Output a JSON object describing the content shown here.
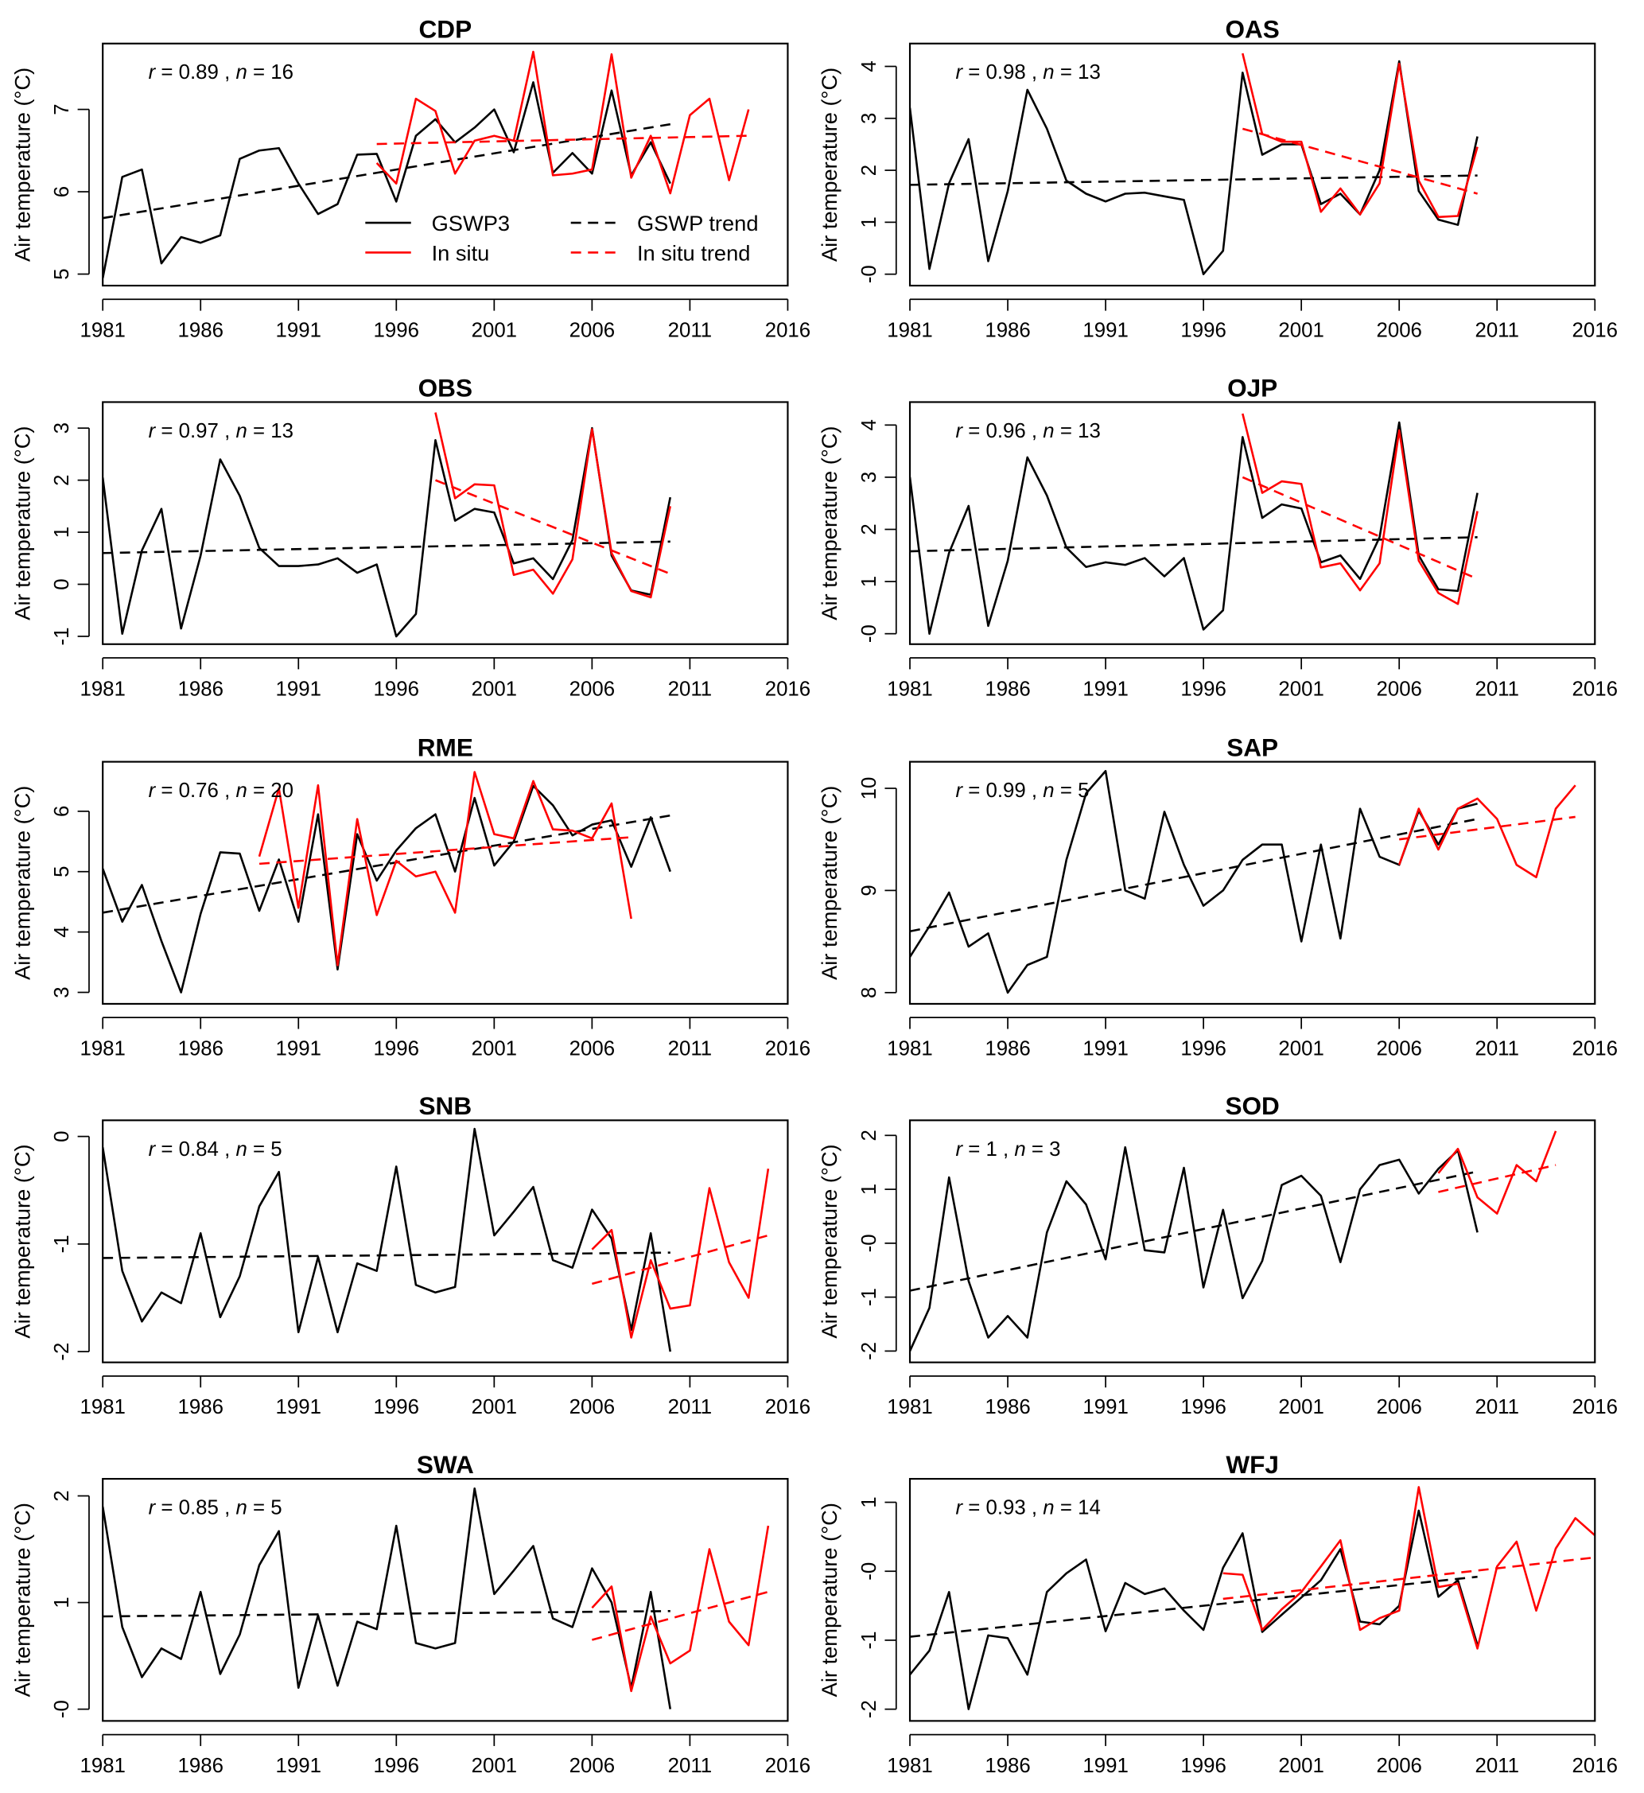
{
  "colors": {
    "gswp": "#000000",
    "insitu": "#ff0000"
  },
  "legend": {
    "gswp": "GSWP3",
    "insitu": "In situ",
    "gswp_trend": "GSWP trend",
    "insitu_trend": "In situ trend"
  },
  "chart_data": [
    {
      "type": "line",
      "title": "CDP",
      "ylabel": "Air temperature (°C)",
      "annotation": "r = 0.89 , n = 16",
      "xlim": [
        1981,
        2016
      ],
      "ylim": [
        4.86,
        7.8
      ],
      "xticks": [
        "1981",
        "1986",
        "1991",
        "1996",
        "2001",
        "2006",
        "2011",
        "2016"
      ],
      "yticks": [
        {
          "v": 5,
          "label": "5"
        },
        {
          "v": 6,
          "label": "6"
        },
        {
          "v": 7,
          "label": "7"
        }
      ],
      "gswp": {
        "x0": 1981,
        "values": [
          4.95,
          6.18,
          6.27,
          5.13,
          5.45,
          5.38,
          5.47,
          6.4,
          6.5,
          6.53,
          6.1,
          5.73,
          5.85,
          6.45,
          6.46,
          5.88,
          6.68,
          6.88,
          6.6,
          6.78,
          7.0,
          6.48,
          7.33,
          6.23,
          6.47,
          6.22,
          7.23,
          6.2,
          6.6,
          6.1
        ]
      },
      "insitu": {
        "x0": 1995,
        "values": [
          6.35,
          6.1,
          7.13,
          6.98,
          6.22,
          6.62,
          6.68,
          6.62,
          7.7,
          6.2,
          6.22,
          6.27,
          7.67,
          6.17,
          6.68,
          5.98,
          6.93,
          7.13,
          6.14,
          7.0
        ]
      },
      "gswp_trend": [
        [
          1981,
          5.68
        ],
        [
          2010,
          6.82
        ]
      ],
      "insitu_trend": [
        [
          1995,
          6.58
        ],
        [
          2014,
          6.68
        ]
      ],
      "legend": true
    },
    {
      "type": "line",
      "title": "OAS",
      "ylabel": "Air temperature (°C)",
      "annotation": "r = 0.98 , n = 13",
      "xlim": [
        1981,
        2016
      ],
      "ylim": [
        -0.22,
        4.44
      ],
      "xticks": [
        "1981",
        "1986",
        "1991",
        "1996",
        "2001",
        "2006",
        "2011",
        "2016"
      ],
      "yticks": [
        {
          "v": 0,
          "label": "-0"
        },
        {
          "v": 1,
          "label": "1"
        },
        {
          "v": 2,
          "label": "2"
        },
        {
          "v": 3,
          "label": "3"
        },
        {
          "v": 4,
          "label": "4"
        }
      ],
      "gswp": {
        "x0": 1981,
        "values": [
          3.2,
          0.1,
          1.75,
          2.6,
          0.25,
          1.6,
          3.55,
          2.8,
          1.8,
          1.55,
          1.4,
          1.55,
          1.57,
          1.5,
          1.43,
          0.0,
          0.45,
          3.88,
          2.3,
          2.5,
          2.5,
          1.35,
          1.55,
          1.15,
          2.0,
          4.1,
          1.6,
          1.05,
          0.95,
          2.65
        ]
      },
      "insitu": {
        "x0": 1998,
        "values": [
          4.25,
          2.7,
          2.55,
          2.55,
          1.2,
          1.65,
          1.15,
          1.75,
          4.05,
          1.8,
          1.1,
          1.12,
          2.45
        ]
      },
      "gswp_trend": [
        [
          1981,
          1.72
        ],
        [
          2010,
          1.9
        ]
      ],
      "insitu_trend": [
        [
          1998,
          2.8
        ],
        [
          2010,
          1.55
        ]
      ]
    },
    {
      "type": "line",
      "title": "OBS",
      "ylabel": "Air temperature (°C)",
      "annotation": "r = 0.97 , n = 13",
      "xlim": [
        1981,
        2016
      ],
      "ylim": [
        -1.15,
        3.5
      ],
      "xticks": [
        "1981",
        "1986",
        "1991",
        "1996",
        "2001",
        "2006",
        "2011",
        "2016"
      ],
      "yticks": [
        {
          "v": -1,
          "label": "-1"
        },
        {
          "v": 0,
          "label": "0"
        },
        {
          "v": 1,
          "label": "1"
        },
        {
          "v": 2,
          "label": "2"
        },
        {
          "v": 3,
          "label": "3"
        }
      ],
      "gswp": {
        "x0": 1981,
        "values": [
          2.05,
          -0.95,
          0.65,
          1.45,
          -0.85,
          0.55,
          2.4,
          1.7,
          0.7,
          0.35,
          0.35,
          0.38,
          0.5,
          0.22,
          0.38,
          -1.0,
          -0.57,
          2.77,
          1.22,
          1.45,
          1.38,
          0.4,
          0.5,
          0.1,
          0.85,
          3.0,
          0.55,
          -0.12,
          -0.2,
          1.67
        ]
      },
      "insitu": {
        "x0": 1998,
        "values": [
          3.3,
          1.65,
          1.92,
          1.9,
          0.18,
          0.28,
          -0.18,
          0.48,
          2.98,
          0.6,
          -0.13,
          -0.25,
          1.5
        ]
      },
      "gswp_trend": [
        [
          1981,
          0.6
        ],
        [
          2010,
          0.82
        ]
      ],
      "insitu_trend": [
        [
          1998,
          2.0
        ],
        [
          2010,
          0.2
        ]
      ]
    },
    {
      "type": "line",
      "title": "OJP",
      "ylabel": "Air temperature (°C)",
      "annotation": "r = 0.96 , n = 13",
      "xlim": [
        1981,
        2016
      ],
      "ylim": [
        -0.2,
        4.44
      ],
      "xticks": [
        "1981",
        "1986",
        "1991",
        "1996",
        "2001",
        "2006",
        "2011",
        "2016"
      ],
      "yticks": [
        {
          "v": 0,
          "label": "-0"
        },
        {
          "v": 1,
          "label": "1"
        },
        {
          "v": 2,
          "label": "2"
        },
        {
          "v": 3,
          "label": "3"
        },
        {
          "v": 4,
          "label": "4"
        }
      ],
      "gswp": {
        "x0": 1981,
        "values": [
          3.0,
          0.0,
          1.55,
          2.45,
          0.15,
          1.4,
          3.38,
          2.65,
          1.65,
          1.28,
          1.37,
          1.32,
          1.45,
          1.1,
          1.45,
          0.08,
          0.45,
          3.77,
          2.22,
          2.48,
          2.4,
          1.37,
          1.5,
          1.05,
          1.85,
          4.05,
          1.5,
          0.85,
          0.82,
          2.7
        ]
      },
      "insitu": {
        "x0": 1998,
        "values": [
          4.22,
          2.7,
          2.92,
          2.87,
          1.27,
          1.35,
          0.83,
          1.35,
          3.9,
          1.4,
          0.78,
          0.57,
          2.35
        ]
      },
      "gswp_trend": [
        [
          1981,
          1.58
        ],
        [
          2010,
          1.85
        ]
      ],
      "insitu_trend": [
        [
          1998,
          3.0
        ],
        [
          2010,
          1.05
        ]
      ]
    },
    {
      "type": "line",
      "title": "RME",
      "ylabel": "Air temperature (°C)",
      "annotation": "r = 0.76 , n = 20",
      "xlim": [
        1981,
        2016
      ],
      "ylim": [
        2.81,
        6.82
      ],
      "xticks": [
        "1981",
        "1986",
        "1991",
        "1996",
        "2001",
        "2006",
        "2011",
        "2016"
      ],
      "yticks": [
        {
          "v": 3,
          "label": "3"
        },
        {
          "v": 4,
          "label": "4"
        },
        {
          "v": 5,
          "label": "5"
        },
        {
          "v": 6,
          "label": "6"
        }
      ],
      "gswp": {
        "x0": 1981,
        "values": [
          5.05,
          4.17,
          4.78,
          3.85,
          3.0,
          4.3,
          5.32,
          5.3,
          4.35,
          5.2,
          4.17,
          5.95,
          3.38,
          5.62,
          4.85,
          5.35,
          5.72,
          5.95,
          5.0,
          6.22,
          5.1,
          5.5,
          6.42,
          6.1,
          5.6,
          5.78,
          5.85,
          5.08,
          5.9,
          5.0
        ]
      },
      "insitu": {
        "x0": 1989,
        "values": [
          5.25,
          6.38,
          4.4,
          6.43,
          3.45,
          5.87,
          4.28,
          5.18,
          4.92,
          5.0,
          4.32,
          6.65,
          5.62,
          5.55,
          6.5,
          5.7,
          5.68,
          5.55,
          6.13,
          4.22
        ]
      },
      "gswp_trend": [
        [
          1981,
          4.32
        ],
        [
          2010,
          5.93
        ]
      ],
      "insitu_trend": [
        [
          1989,
          5.13
        ],
        [
          2008,
          5.57
        ]
      ]
    },
    {
      "type": "line",
      "title": "SAP",
      "ylabel": "Air temperature (°C)",
      "annotation": "r = 0.99 , n = 5",
      "xlim": [
        1981,
        2016
      ],
      "ylim": [
        7.89,
        10.26
      ],
      "xticks": [
        "1981",
        "1986",
        "1991",
        "1996",
        "2001",
        "2006",
        "2011",
        "2016"
      ],
      "yticks": [
        {
          "v": 8,
          "label": "8"
        },
        {
          "v": 9,
          "label": "9"
        },
        {
          "v": 10,
          "label": "10"
        }
      ],
      "gswp": {
        "x0": 1981,
        "values": [
          8.35,
          8.65,
          8.98,
          8.45,
          8.58,
          8.0,
          8.27,
          8.35,
          9.3,
          9.95,
          10.17,
          9.0,
          8.92,
          9.77,
          9.25,
          8.85,
          9.0,
          9.3,
          9.45,
          9.45,
          8.5,
          9.45,
          8.53,
          9.8,
          9.33,
          9.25,
          9.78,
          9.45,
          9.8,
          9.85
        ]
      },
      "insitu": {
        "x0": 2006,
        "values": [
          9.25,
          9.8,
          9.4,
          9.8,
          9.9,
          9.7,
          9.25,
          9.13,
          9.8,
          10.03
        ]
      },
      "gswp_trend": [
        [
          1981,
          8.6
        ],
        [
          2010,
          9.7
        ]
      ],
      "insitu_trend": [
        [
          2006,
          9.5
        ],
        [
          2015,
          9.72
        ]
      ]
    },
    {
      "type": "line",
      "title": "SNB",
      "ylabel": "Air temperature (°C)",
      "annotation": "r = 0.84 , n = 5",
      "xlim": [
        1981,
        2016
      ],
      "ylim": [
        -2.1,
        0.15
      ],
      "xticks": [
        "1981",
        "1986",
        "1991",
        "1996",
        "2001",
        "2006",
        "2011",
        "2016"
      ],
      "yticks": [
        {
          "v": -2,
          "label": "-2"
        },
        {
          "v": -1,
          "label": "-1"
        },
        {
          "v": 0,
          "label": "0"
        }
      ],
      "gswp": {
        "x0": 1981,
        "values": [
          -0.1,
          -1.25,
          -1.72,
          -1.45,
          -1.55,
          -0.9,
          -1.68,
          -1.3,
          -0.65,
          -0.33,
          -1.82,
          -1.12,
          -1.82,
          -1.18,
          -1.25,
          -0.28,
          -1.38,
          -1.45,
          -1.4,
          0.07,
          -0.92,
          -0.7,
          -0.47,
          -1.15,
          -1.22,
          -0.68,
          -0.95,
          -1.8,
          -0.9,
          -2.0
        ]
      },
      "insitu": {
        "x0": 2006,
        "values": [
          -1.05,
          -0.87,
          -1.87,
          -1.15,
          -1.6,
          -1.57,
          -0.48,
          -1.17,
          -1.5,
          -0.3
        ]
      },
      "gswp_trend": [
        [
          1981,
          -1.13
        ],
        [
          2010,
          -1.08
        ]
      ],
      "insitu_trend": [
        [
          2006,
          -1.37
        ],
        [
          2015,
          -0.92
        ]
      ]
    },
    {
      "type": "line",
      "title": "SOD",
      "ylabel": "Air temperature (°C)",
      "annotation": "r = 1 , n = 3",
      "xlim": [
        1981,
        2016
      ],
      "ylim": [
        -2.21,
        2.28
      ],
      "xticks": [
        "1981",
        "1986",
        "1991",
        "1996",
        "2001",
        "2006",
        "2011",
        "2016"
      ],
      "yticks": [
        {
          "v": -2,
          "label": "-2"
        },
        {
          "v": -1,
          "label": "-1"
        },
        {
          "v": 0,
          "label": "-0"
        },
        {
          "v": 1,
          "label": "1"
        },
        {
          "v": 2,
          "label": "2"
        }
      ],
      "gswp": {
        "x0": 1981,
        "values": [
          -2.0,
          -1.2,
          1.22,
          -0.7,
          -1.75,
          -1.35,
          -1.75,
          0.2,
          1.15,
          0.72,
          -0.3,
          1.78,
          -0.13,
          -0.17,
          1.4,
          -0.82,
          0.62,
          -1.02,
          -0.33,
          1.08,
          1.25,
          0.88,
          -0.35,
          1.0,
          1.45,
          1.55,
          0.92,
          1.38,
          1.72,
          0.2
        ]
      },
      "insitu": {
        "x0": 2008,
        "values": [
          1.3,
          1.75,
          0.85,
          0.55,
          1.45,
          1.15,
          2.08
        ]
      },
      "gswp_trend": [
        [
          1981,
          -0.88
        ],
        [
          2010,
          1.33
        ]
      ],
      "insitu_trend": [
        [
          2008,
          0.95
        ],
        [
          2014,
          1.45
        ]
      ]
    },
    {
      "type": "line",
      "title": "SWA",
      "ylabel": "Air temperature (°C)",
      "annotation": "r = 0.85 , n = 5",
      "xlim": [
        1981,
        2016
      ],
      "ylim": [
        -0.11,
        2.16
      ],
      "xticks": [
        "1981",
        "1986",
        "1991",
        "1996",
        "2001",
        "2006",
        "2011",
        "2016"
      ],
      "yticks": [
        {
          "v": 0,
          "label": "-0"
        },
        {
          "v": 1,
          "label": "1"
        },
        {
          "v": 2,
          "label": "2"
        }
      ],
      "gswp": {
        "x0": 1981,
        "values": [
          1.9,
          0.77,
          0.3,
          0.57,
          0.47,
          1.1,
          0.33,
          0.7,
          1.35,
          1.67,
          0.2,
          0.88,
          0.22,
          0.82,
          0.75,
          1.72,
          0.62,
          0.57,
          0.62,
          2.07,
          1.08,
          1.3,
          1.53,
          0.85,
          0.77,
          1.32,
          1.0,
          0.2,
          1.1,
          0.0
        ]
      },
      "insitu": {
        "x0": 2006,
        "values": [
          0.95,
          1.15,
          0.17,
          0.87,
          0.43,
          0.55,
          1.5,
          0.82,
          0.6,
          1.72
        ]
      },
      "gswp_trend": [
        [
          1981,
          0.87
        ],
        [
          2010,
          0.92
        ]
      ],
      "insitu_trend": [
        [
          2006,
          0.65
        ],
        [
          2015,
          1.1
        ]
      ]
    },
    {
      "type": "line",
      "title": "WFJ",
      "ylabel": "Air temperature (°C)",
      "annotation": "r = 0.93 , n = 14",
      "xlim": [
        1981,
        2016
      ],
      "ylim": [
        -2.17,
        1.34
      ],
      "xticks": [
        "1981",
        "1986",
        "1991",
        "1996",
        "2001",
        "2006",
        "2011",
        "2016"
      ],
      "yticks": [
        {
          "v": -2,
          "label": "-2"
        },
        {
          "v": -1,
          "label": "-1"
        },
        {
          "v": 0,
          "label": "-0"
        },
        {
          "v": 1,
          "label": "1"
        }
      ],
      "gswp": {
        "x0": 1981,
        "values": [
          -1.5,
          -1.15,
          -0.3,
          -2.0,
          -0.93,
          -0.97,
          -1.5,
          -0.3,
          -0.03,
          0.17,
          -0.87,
          -0.17,
          -0.33,
          -0.25,
          -0.57,
          -0.85,
          0.05,
          0.55,
          -0.88,
          -0.63,
          -0.38,
          -0.13,
          0.32,
          -0.73,
          -0.77,
          -0.5,
          0.88,
          -0.37,
          -0.13,
          -1.07
        ]
      },
      "insitu": {
        "x0": 1997,
        "values": [
          -0.03,
          -0.05,
          -0.85,
          -0.55,
          -0.3,
          0.07,
          0.45,
          -0.85,
          -0.68,
          -0.57,
          1.22,
          -0.23,
          -0.18,
          -1.12,
          0.07,
          0.43,
          -0.57,
          0.33,
          0.77,
          0.52
        ]
      },
      "gswp_trend": [
        [
          1981,
          -0.95
        ],
        [
          2010,
          -0.08
        ]
      ],
      "insitu_trend": [
        [
          1997,
          -0.4
        ],
        [
          2016,
          0.2
        ]
      ]
    }
  ]
}
